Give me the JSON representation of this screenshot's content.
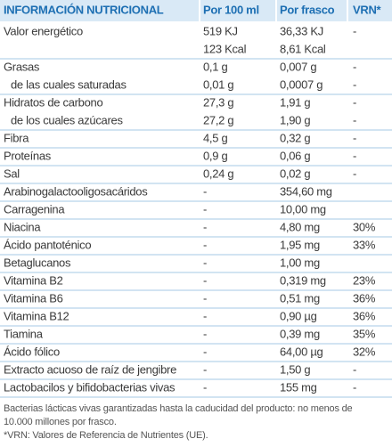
{
  "header": [
    "INFORMACIÓN NUTRICIONAL",
    "Por 100 ml",
    "Por frasco",
    "VRN*"
  ],
  "sections": [
    [
      [
        "Valor energético",
        [
          "519 KJ",
          "123 Kcal"
        ],
        [
          "36,33 KJ",
          "8,61 Kcal"
        ],
        "-"
      ]
    ],
    [
      [
        "Grasas",
        "0,1 g",
        "0,007 g",
        "-"
      ],
      [
        "de las cuales saturadas",
        "0,01 g",
        "0,0007 g",
        "-"
      ]
    ],
    [
      [
        "Hidratos de carbono",
        "27,3 g",
        "1,91 g",
        "-"
      ],
      [
        "de los cuales azúcares",
        "27,2 g",
        "1,90 g",
        "-"
      ]
    ],
    [
      [
        "Fibra",
        "4,5 g",
        "0,32 g",
        "-"
      ]
    ],
    [
      [
        "Proteínas",
        "0,9 g",
        "0,06 g",
        "-"
      ]
    ],
    [
      [
        "Sal",
        "0,24 g",
        "0,02 g",
        "-"
      ]
    ],
    [
      [
        "Arabinogalactooligosacáridos",
        "-",
        "354,60 mg",
        null
      ]
    ],
    [
      [
        "Carragenina",
        "-",
        "10,00 mg",
        null
      ]
    ],
    [
      [
        "Niacina",
        "-",
        "4,80 mg",
        "30%"
      ]
    ],
    [
      [
        "Ácido pantoténico",
        "-",
        "1,95 mg",
        "33%"
      ]
    ],
    [
      [
        "Betaglucanos",
        "-",
        "1,00 mg",
        null
      ]
    ],
    [
      [
        "Vitamina B2",
        "-",
        "0,319 mg",
        "23%"
      ]
    ],
    [
      [
        "Vitamina B6",
        "-",
        "0,51 mg",
        "36%"
      ]
    ],
    [
      [
        "Vitamina B12",
        "-",
        "0,90 µg",
        "36%"
      ]
    ],
    [
      [
        "Tiamina",
        "-",
        "0,39 mg",
        "35%"
      ]
    ],
    [
      [
        "Ácido fólico",
        "-",
        "64,00 µg",
        "32%"
      ]
    ],
    [
      [
        "Extracto acuoso de raíz de jengibre",
        "-",
        "1,50 g",
        "-"
      ]
    ],
    [
      [
        "Lactobacilos y bifidobacterias vivas",
        "-",
        "155 mg",
        "-"
      ]
    ]
  ],
  "footnote": [
    "Bacterias lácticas vivas garantizadas hasta la caducidad del producto: no menos de",
    "10.000 millones por frasco.",
    "*VRN: Valores de Referencia de Nutrientes (UE)."
  ]
}
